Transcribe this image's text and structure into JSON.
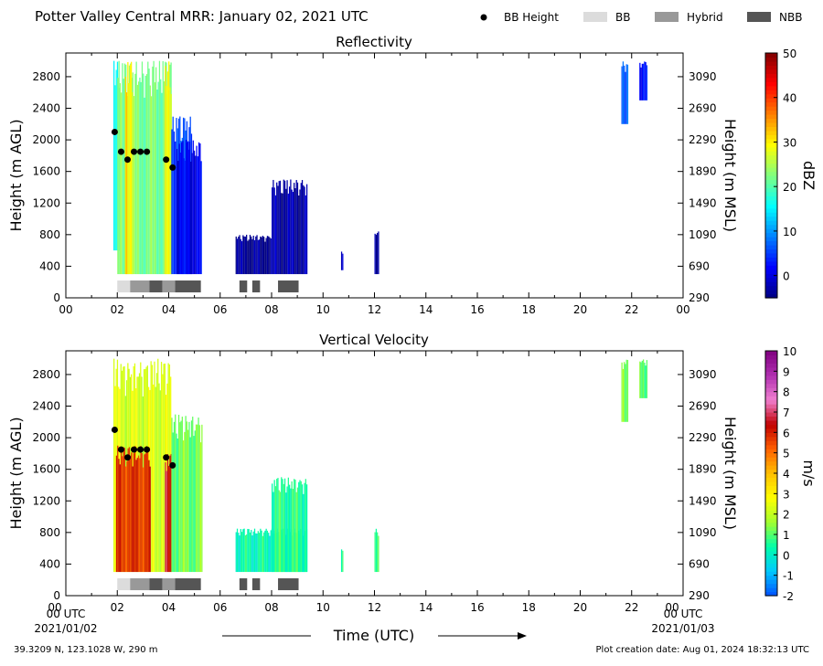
{
  "header": {
    "title": "Potter Valley Central MRR:  January 02, 2021 UTC",
    "legend": [
      {
        "label": "BB Height",
        "kind": "marker",
        "color": "#000000"
      },
      {
        "label": "BB",
        "kind": "swatch",
        "color": "#dcdcdc"
      },
      {
        "label": "Hybrid",
        "kind": "swatch",
        "color": "#999999"
      },
      {
        "label": "NBB",
        "kind": "swatch",
        "color": "#555555"
      }
    ]
  },
  "footer": {
    "location": "39.3209 N, 123.1028 W, 290 m",
    "creation": "Plot creation date: Aug 01, 2024 18:32:13 UTC",
    "xlabel": "Time (UTC)",
    "start_label": "00 UTC",
    "start_date": "2021/01/02",
    "end_label": "00 UTC",
    "end_date": "2021/01/03"
  },
  "chart_data": [
    {
      "type": "heatmap",
      "title": "Reflectivity",
      "ylabel": "Height (m AGL)",
      "ylabel_right": "Height (m MSL)",
      "xticks": [
        "00",
        "02",
        "04",
        "06",
        "08",
        "10",
        "12",
        "14",
        "16",
        "18",
        "20",
        "22",
        "00"
      ],
      "yticks": [
        0,
        400,
        800,
        1200,
        1600,
        2000,
        2400,
        2800
      ],
      "yticks_right": [
        290,
        690,
        1090,
        1490,
        1890,
        2290,
        2690,
        3090
      ],
      "xlim": [
        0,
        24
      ],
      "ylim": [
        0,
        3100
      ],
      "colorbar": {
        "label": "dBZ",
        "range": [
          -5,
          50
        ],
        "ticks": [
          0,
          10,
          20,
          30,
          40,
          50
        ],
        "colors": [
          "#00007f",
          "#0000ff",
          "#007fff",
          "#00ffff",
          "#7fff7f",
          "#ffff00",
          "#ff7f00",
          "#ff0000",
          "#7f0000"
        ]
      },
      "bb_height": {
        "hours": [
          1.9,
          2.15,
          2.4,
          2.65,
          2.9,
          3.15,
          3.9,
          4.15
        ],
        "heights_m": [
          2100,
          1850,
          1750,
          1850,
          1850,
          1850,
          1750,
          1650
        ]
      },
      "bb_type": [
        {
          "start": 2.0,
          "end": 2.5,
          "type": "BB"
        },
        {
          "start": 2.5,
          "end": 3.25,
          "type": "Hybrid"
        },
        {
          "start": 3.25,
          "end": 3.75,
          "type": "NBB"
        },
        {
          "start": 3.75,
          "end": 4.25,
          "type": "Hybrid"
        },
        {
          "start": 4.25,
          "end": 5.25,
          "type": "NBB"
        },
        {
          "start": 6.75,
          "end": 7.05,
          "type": "NBB"
        },
        {
          "start": 7.25,
          "end": 7.55,
          "type": "NBB"
        },
        {
          "start": 8.25,
          "end": 9.05,
          "type": "NBB"
        }
      ],
      "echoes": [
        {
          "start": 1.85,
          "end": 2.1,
          "bottom": 600,
          "top": 3000,
          "value": 15
        },
        {
          "start": 2.0,
          "end": 4.1,
          "bottom": 300,
          "top": 3000,
          "value": 22
        },
        {
          "start": 2.3,
          "end": 2.6,
          "bottom": 300,
          "top": 3000,
          "value": 30
        },
        {
          "start": 3.85,
          "end": 4.1,
          "bottom": 300,
          "top": 3000,
          "value": 30
        },
        {
          "start": 4.1,
          "end": 4.9,
          "bottom": 300,
          "top": 2300,
          "value": 6
        },
        {
          "start": 4.3,
          "end": 5.3,
          "bottom": 300,
          "top": 2000,
          "value": 1
        },
        {
          "start": 6.6,
          "end": 8.0,
          "bottom": 300,
          "top": 800,
          "value": -4
        },
        {
          "start": 8.0,
          "end": 9.4,
          "bottom": 300,
          "top": 1500,
          "value": -3
        },
        {
          "start": 10.7,
          "end": 10.8,
          "bottom": 350,
          "top": 600,
          "value": -3
        },
        {
          "start": 12.0,
          "end": 12.2,
          "bottom": 300,
          "top": 850,
          "value": -3
        },
        {
          "start": 21.6,
          "end": 21.85,
          "bottom": 2200,
          "top": 3000,
          "value": 8
        },
        {
          "start": 22.3,
          "end": 22.6,
          "bottom": 2500,
          "top": 3000,
          "value": 3
        }
      ]
    },
    {
      "type": "heatmap",
      "title": "Vertical Velocity",
      "ylabel": "Height (m AGL)",
      "ylabel_right": "Height (m MSL)",
      "xticks": [
        "00",
        "02",
        "04",
        "06",
        "08",
        "10",
        "12",
        "14",
        "16",
        "18",
        "20",
        "22",
        "00"
      ],
      "yticks": [
        0,
        400,
        800,
        1200,
        1600,
        2000,
        2400,
        2800
      ],
      "yticks_right": [
        290,
        690,
        1090,
        1490,
        1890,
        2290,
        2690,
        3090
      ],
      "xlim": [
        0,
        24
      ],
      "ylim": [
        0,
        3100
      ],
      "colorbar": {
        "label": "m/s",
        "range": [
          -2,
          10
        ],
        "ticks": [
          -2,
          -1,
          0,
          1,
          2,
          3,
          4,
          5,
          6,
          7,
          8,
          9,
          10
        ],
        "colors": [
          "#0050ff",
          "#00c8ff",
          "#00ffaa",
          "#a0ff30",
          "#ffff00",
          "#ffc000",
          "#ff6000",
          "#c00000",
          "#f080d0",
          "#b030b0",
          "#800080"
        ]
      },
      "bb_height": {
        "hours": [
          1.9,
          2.15,
          2.4,
          2.65,
          2.9,
          3.15,
          3.9,
          4.15
        ],
        "heights_m": [
          2100,
          1850,
          1750,
          1850,
          1850,
          1850,
          1750,
          1650
        ]
      },
      "bb_type": [
        {
          "start": 2.0,
          "end": 2.5,
          "type": "BB"
        },
        {
          "start": 2.5,
          "end": 3.25,
          "type": "Hybrid"
        },
        {
          "start": 3.25,
          "end": 3.75,
          "type": "NBB"
        },
        {
          "start": 3.75,
          "end": 4.25,
          "type": "Hybrid"
        },
        {
          "start": 4.25,
          "end": 5.25,
          "type": "NBB"
        },
        {
          "start": 6.75,
          "end": 7.05,
          "type": "NBB"
        },
        {
          "start": 7.25,
          "end": 7.55,
          "type": "NBB"
        },
        {
          "start": 8.25,
          "end": 9.05,
          "type": "NBB"
        }
      ],
      "echoes": [
        {
          "start": 1.85,
          "end": 4.1,
          "bottom": 300,
          "top": 3000,
          "value": 2.3
        },
        {
          "start": 1.95,
          "end": 3.3,
          "bottom": 300,
          "top": 1900,
          "value": 5.8
        },
        {
          "start": 3.85,
          "end": 4.1,
          "bottom": 300,
          "top": 1800,
          "value": 6.5
        },
        {
          "start": 4.1,
          "end": 5.3,
          "bottom": 300,
          "top": 2300,
          "value": 1.2
        },
        {
          "start": 6.6,
          "end": 9.4,
          "bottom": 300,
          "top": 850,
          "value": 0.3
        },
        {
          "start": 8.0,
          "end": 9.4,
          "bottom": 300,
          "top": 1500,
          "value": 0.6
        },
        {
          "start": 10.7,
          "end": 10.8,
          "bottom": 300,
          "top": 600,
          "value": 0.5
        },
        {
          "start": 12.0,
          "end": 12.2,
          "bottom": 300,
          "top": 850,
          "value": 0.5
        },
        {
          "start": 21.6,
          "end": 21.85,
          "bottom": 2200,
          "top": 3000,
          "value": 1.2
        },
        {
          "start": 22.3,
          "end": 22.6,
          "bottom": 2500,
          "top": 3000,
          "value": 1.2
        }
      ]
    }
  ]
}
